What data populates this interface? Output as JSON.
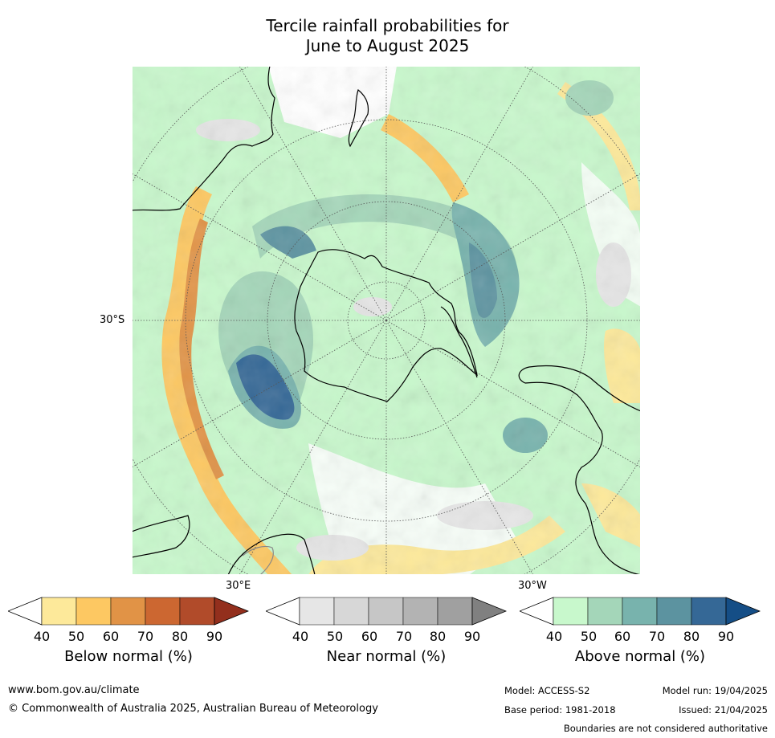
{
  "title": {
    "line1": "Tercile rainfall probabilities for",
    "line2": "June to August 2025"
  },
  "map": {
    "projection": "south-polar-stereographic",
    "lat_label": "30°S",
    "lon_labels": {
      "east": "30°E",
      "west": "30°W"
    },
    "colors": {
      "ocean_white": "#ffffff",
      "coast": "#000000",
      "border": "#888888",
      "grid": "#555555"
    }
  },
  "legends": [
    {
      "label": "Below normal (%)",
      "ticks": [
        "40",
        "50",
        "60",
        "70",
        "80",
        "90"
      ],
      "colors": [
        "#ffffff",
        "#fde99a",
        "#fdc862",
        "#e19346",
        "#cc6731",
        "#b14b2a",
        "#932f1d"
      ]
    },
    {
      "label": "Near normal (%)",
      "ticks": [
        "40",
        "50",
        "60",
        "70",
        "80",
        "90"
      ],
      "colors": [
        "#ffffff",
        "#e6e6e6",
        "#d7d7d7",
        "#c6c6c6",
        "#b3b3b3",
        "#a0a0a0",
        "#808080"
      ]
    },
    {
      "label": "Above normal (%)",
      "ticks": [
        "40",
        "50",
        "60",
        "70",
        "80",
        "90"
      ],
      "colors": [
        "#ffffff",
        "#c8f8cc",
        "#a4d6b9",
        "#78b3ad",
        "#5c93a0",
        "#356896",
        "#154e86"
      ]
    }
  ],
  "footer": {
    "website": "www.bom.gov.au/climate",
    "copyright": "© Commonwealth of Australia 2025, Australian Bureau of Meteorology",
    "model": "Model: ACCESS-S2",
    "base_period": "Base period: 1981-2018",
    "model_run": "Model run: 19/04/2025",
    "issued": "Issued: 21/04/2025",
    "disclaimer": "Boundaries are not considered authoritative"
  }
}
